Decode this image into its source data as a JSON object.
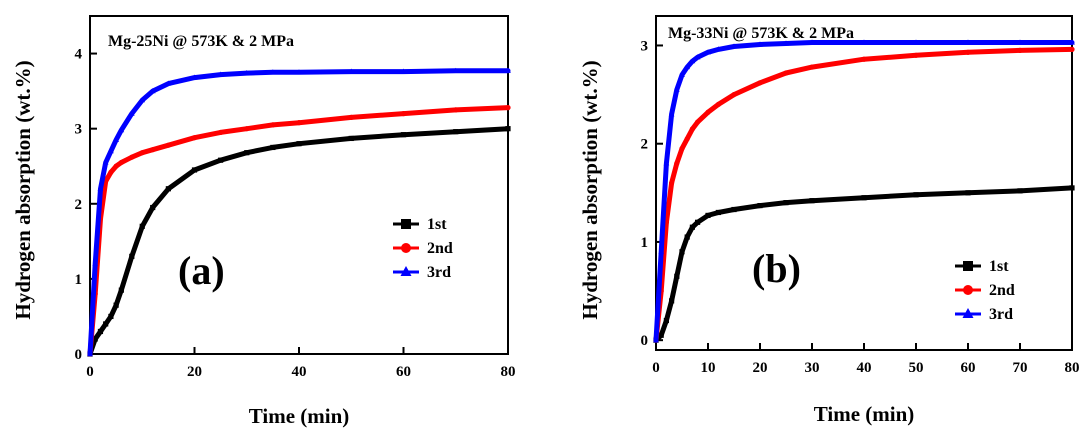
{
  "chart_data": [
    {
      "type": "line",
      "title": "Mg-25Ni @ 573K & 2 MPa",
      "panel_label": "(a)",
      "xlabel": "Time (min)",
      "ylabel": "Hydrogen absorption (wt.%)",
      "xlim": [
        0,
        80
      ],
      "ylim": [
        0,
        4.5
      ],
      "x_ticks": [
        0,
        20,
        40,
        60,
        80
      ],
      "y_ticks": [
        0,
        1,
        2,
        3,
        4
      ],
      "grid": false,
      "legend_position": "center-right",
      "x": [
        0,
        1,
        2,
        3,
        4,
        5,
        6,
        8,
        10,
        12,
        15,
        20,
        25,
        30,
        35,
        40,
        50,
        60,
        70,
        80
      ],
      "series": [
        {
          "name": "1st",
          "color": "#000000",
          "marker": "square",
          "values": [
            0,
            0.2,
            0.3,
            0.4,
            0.5,
            0.65,
            0.85,
            1.3,
            1.7,
            1.95,
            2.2,
            2.45,
            2.58,
            2.68,
            2.75,
            2.8,
            2.87,
            2.92,
            2.96,
            3.0
          ]
        },
        {
          "name": "2nd",
          "color": "#ff0000",
          "marker": "circle",
          "values": [
            0,
            0.8,
            1.8,
            2.3,
            2.42,
            2.5,
            2.55,
            2.62,
            2.68,
            2.72,
            2.78,
            2.88,
            2.95,
            3.0,
            3.05,
            3.08,
            3.15,
            3.2,
            3.25,
            3.28
          ]
        },
        {
          "name": "3rd",
          "color": "#0000ff",
          "marker": "triangle",
          "values": [
            0,
            1.2,
            2.2,
            2.55,
            2.7,
            2.85,
            2.98,
            3.2,
            3.38,
            3.5,
            3.6,
            3.68,
            3.72,
            3.74,
            3.75,
            3.75,
            3.76,
            3.76,
            3.77,
            3.77
          ]
        }
      ]
    },
    {
      "type": "line",
      "title": "Mg-33Ni @ 573K & 2 MPa",
      "panel_label": "(b)",
      "xlabel": "Time (min)",
      "ylabel": "Hydrogen absorption (wt.%)",
      "xlim": [
        0,
        80
      ],
      "ylim": [
        -0.1,
        3.3
      ],
      "x_ticks": [
        0,
        10,
        20,
        30,
        40,
        50,
        60,
        70,
        80
      ],
      "y_ticks": [
        0,
        1,
        2,
        3
      ],
      "grid": false,
      "legend_position": "bottom-right",
      "x": [
        0,
        1,
        2,
        3,
        4,
        5,
        6,
        7,
        8,
        10,
        12,
        15,
        20,
        25,
        30,
        40,
        50,
        60,
        70,
        80
      ],
      "series": [
        {
          "name": "1st",
          "color": "#000000",
          "marker": "square",
          "values": [
            0,
            0.05,
            0.2,
            0.4,
            0.65,
            0.9,
            1.05,
            1.15,
            1.2,
            1.27,
            1.3,
            1.33,
            1.37,
            1.4,
            1.42,
            1.45,
            1.48,
            1.5,
            1.52,
            1.55
          ]
        },
        {
          "name": "2nd",
          "color": "#ff0000",
          "marker": "circle",
          "values": [
            0,
            0.5,
            1.2,
            1.6,
            1.8,
            1.95,
            2.05,
            2.15,
            2.22,
            2.32,
            2.4,
            2.5,
            2.62,
            2.72,
            2.78,
            2.86,
            2.9,
            2.93,
            2.95,
            2.96
          ]
        },
        {
          "name": "3rd",
          "color": "#0000ff",
          "marker": "triangle",
          "values": [
            0,
            0.9,
            1.8,
            2.3,
            2.55,
            2.7,
            2.78,
            2.84,
            2.88,
            2.93,
            2.96,
            2.99,
            3.01,
            3.02,
            3.03,
            3.03,
            3.03,
            3.03,
            3.03,
            3.03
          ]
        }
      ]
    }
  ]
}
